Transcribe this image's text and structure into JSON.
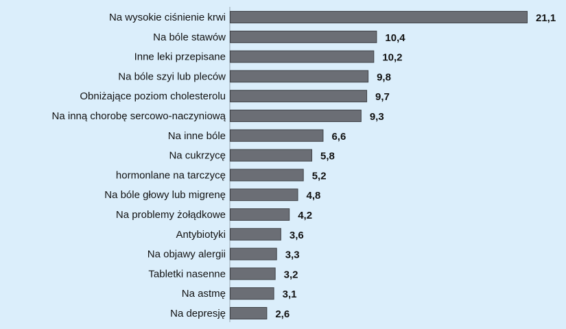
{
  "chart_data": {
    "type": "bar",
    "orientation": "horizontal",
    "title": "",
    "xlabel": "",
    "ylabel": "",
    "categories": [
      "Na wysokie ciśnienie krwi",
      "Na bóle stawów",
      "Inne leki przepisane",
      "Na bóle szyi lub pleców",
      "Obniżające poziom cholesterolu",
      "Na inną chorobę sercowo-naczyniową",
      "Na inne bóle",
      "Na cukrzycę",
      "hormonlane na tarczycę",
      "Na bóle głowy lub migrenę",
      "Na problemy żołądkowe",
      "Antybiotyki",
      "Na objawy alergii",
      "Tabletki nasenne",
      "Na astmę",
      "Na depresję"
    ],
    "values": [
      21.1,
      10.4,
      10.2,
      9.8,
      9.7,
      9.3,
      6.6,
      5.8,
      5.2,
      4.8,
      4.2,
      3.6,
      3.3,
      3.2,
      3.1,
      2.6
    ],
    "value_labels": [
      "21,1",
      "10,4",
      "10,2",
      "9,8",
      "9,7",
      "9,3",
      "6,6",
      "5,8",
      "5,2",
      "4,8",
      "4,2",
      "3,6",
      "3,3",
      "3,2",
      "3,1",
      "2,6"
    ],
    "xlim": [
      0,
      21.1
    ],
    "grid": false,
    "legend": "none",
    "colors": {
      "bar": "#6b6e75",
      "background": "#dbeefb"
    }
  }
}
